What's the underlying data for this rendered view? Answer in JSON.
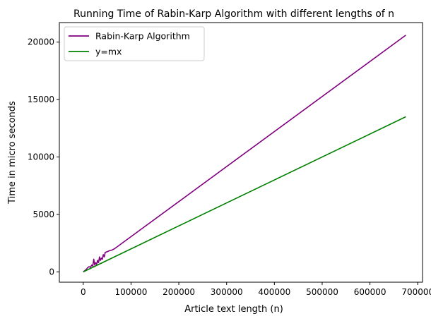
{
  "chart_data": {
    "type": "line",
    "title": "Running Time of Rabin-Karp Algorithm with different lengths of n",
    "xlabel": "Article text length (n)",
    "ylabel": "Time in micro seconds",
    "xlim": [
      -50000,
      710000
    ],
    "ylim": [
      -900,
      21700
    ],
    "xticks": [
      0,
      100000,
      200000,
      300000,
      400000,
      500000,
      600000,
      700000
    ],
    "xtick_labels": [
      "0",
      "100000",
      "200000",
      "300000",
      "400000",
      "500000",
      "600000",
      "700000"
    ],
    "yticks": [
      0,
      5000,
      10000,
      15000,
      20000
    ],
    "ytick_labels": [
      "0",
      "5000",
      "10000",
      "15000",
      "20000"
    ],
    "grid": false,
    "legend_position": "top-left",
    "series": [
      {
        "name": "Rabin-Karp Algorithm",
        "color": "#800080",
        "x": [
          0,
          3000,
          6000,
          9000,
          12000,
          15000,
          18000,
          20000,
          22000,
          24000,
          26000,
          28000,
          30000,
          32000,
          34000,
          36000,
          38000,
          40000,
          42000,
          44000,
          46000,
          50000,
          55000,
          60000,
          65000,
          675000
        ],
        "y": [
          0,
          100,
          200,
          350,
          450,
          400,
          600,
          500,
          1100,
          600,
          800,
          650,
          1000,
          800,
          1300,
          1000,
          1200,
          1100,
          1500,
          1300,
          1700,
          1750,
          1850,
          1900,
          2000,
          20600
        ]
      },
      {
        "name": "y=mx",
        "color": "#008000",
        "x": [
          0,
          675000
        ],
        "y": [
          0,
          13500
        ]
      }
    ]
  }
}
